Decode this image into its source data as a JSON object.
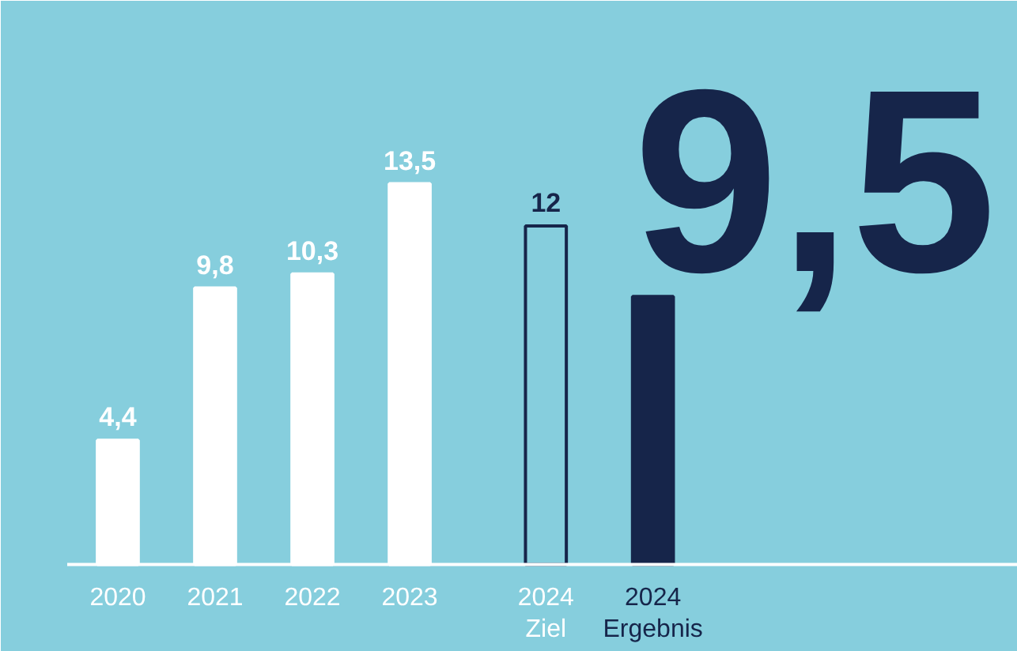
{
  "chart_data": {
    "type": "bar",
    "categories": [
      "2020",
      "2021",
      "2022",
      "2023",
      "2024\nZiel",
      "2024\nErgebnis"
    ],
    "values": [
      4.4,
      9.8,
      10.3,
      13.5,
      12,
      9.5
    ],
    "colors": [
      "#ffffff",
      "#ffffff",
      "#ffffff",
      "#ffffff",
      "#86cedd",
      "#16254a"
    ],
    "value_labels": [
      "4,4",
      "9,8",
      "10,3",
      "13,5",
      "12",
      "9,5"
    ]
  }
}
